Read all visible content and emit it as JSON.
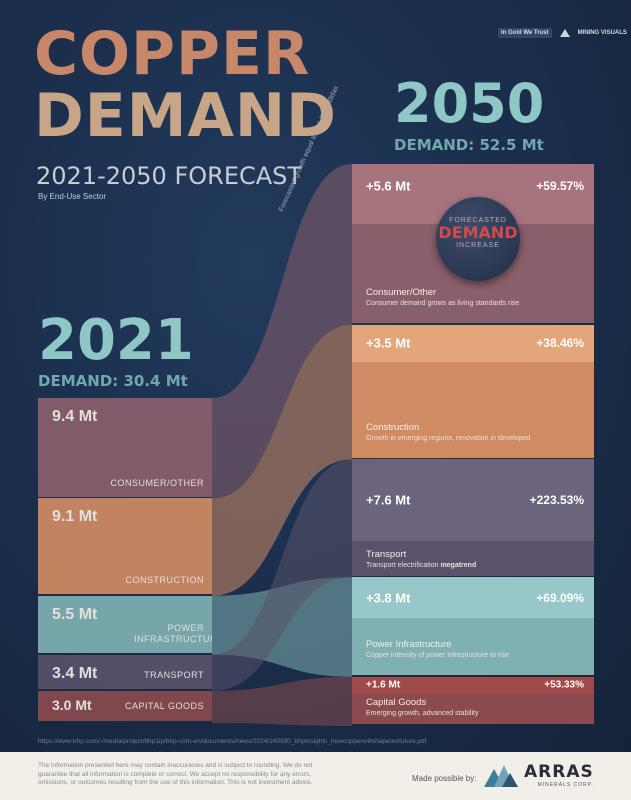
{
  "header": {
    "title_line1": "COPPER",
    "title_line2": "DEMAND",
    "subtitle": "2021-2050 FORECAST",
    "by_sector": "By End-Use Sector",
    "logo_left": "In Gold We Trust",
    "logo_right": "MINING VISUALS"
  },
  "year2050": {
    "year": "2050",
    "demand": "DEMAND: 52.5 Mt"
  },
  "year2021": {
    "year": "2021",
    "demand": "DEMAND: 30.4 Mt"
  },
  "growth_note": "Forecasted growth equal to +16 Escondidas",
  "badge": {
    "line1": "FORECASTED",
    "line2": "DEMAND",
    "line3": "INCREASE"
  },
  "colors": {
    "consumer": "#8a5f6c",
    "consumer_light": "#a7747e",
    "construction": "#d08b63",
    "construction_light": "#e4a57a",
    "power": "#7fb1b3",
    "power_light": "#97c7c8",
    "transport": "#59526a",
    "transport_light": "#6b647c",
    "capital": "#8a4a4f",
    "capital_light": "#a24a4a"
  },
  "chart_data": {
    "type": "bar",
    "title": "Copper Demand 2021-2050 Forecast by End-Use Sector",
    "unit": "Mt",
    "categories": [
      "Consumer/Other",
      "Construction",
      "Power Infrastructure",
      "Transport",
      "Capital Goods"
    ],
    "series": [
      {
        "name": "2021",
        "values": [
          9.4,
          9.1,
          5.5,
          3.4,
          3.0
        ]
      },
      {
        "name": "Increase to 2050",
        "values": [
          5.6,
          3.5,
          3.8,
          7.6,
          1.6
        ]
      },
      {
        "name": "Increase %",
        "values": [
          59.57,
          38.46,
          69.09,
          223.53,
          53.33
        ]
      }
    ],
    "totals": {
      "2021": 30.4,
      "2050": 52.5
    }
  },
  "segments2021": [
    {
      "value": "9.4 Mt",
      "label": "CONSUMER/OTHER"
    },
    {
      "value": "9.1 Mt",
      "label": "CONSTRUCTION"
    },
    {
      "value": "5.5 Mt",
      "label": "POWER INFRASTRUCTURE"
    },
    {
      "value": "3.4 Mt",
      "label": "TRANSPORT"
    },
    {
      "value": "3.0 Mt",
      "label": "CAPITAL GOODS"
    }
  ],
  "bands2050": [
    {
      "inc": "+5.6 Mt",
      "pct": "+59.57%",
      "name": "Consumer/Other",
      "desc": "Consumer demand grows as living standards rise"
    },
    {
      "inc": "+3.5 Mt",
      "pct": "+38.46%",
      "name": "Construction",
      "desc": "Growth in emerging regions, renovation in developed"
    },
    {
      "inc": "+7.6 Mt",
      "pct": "+223.53%",
      "name": "Transport",
      "desc": "Transport electrification",
      "desc_bold": "megatrend"
    },
    {
      "inc": "+3.8 Mt",
      "pct": "+69.09%",
      "name": "Power Infrastructure",
      "desc": "Copper intensity of power infrastructure to rise"
    },
    {
      "inc": "+1.6 Mt",
      "pct": "+53.33%",
      "name": "Capital Goods",
      "desc": "Emerging growth, advanced stability"
    }
  ],
  "footer": {
    "source": "https://www.bhp.com/-/media/project/bhp1ip/bhp-com-en/documents/news/2024/240930_bhpinsights_howcopperwillshapeourfuture.pdf",
    "disclaimer": "The information presented here may contain inaccuracies and is subject to rounding. We do not guarantee that all information is complete or correct. We accept no responsibility for any errors, omissions, or outcomes resulting from the use of this information. This is not investment advice.",
    "made_by": "Made possible by:",
    "sponsor": "ARRAS",
    "sponsor_sub": "MINERALS CORP."
  }
}
